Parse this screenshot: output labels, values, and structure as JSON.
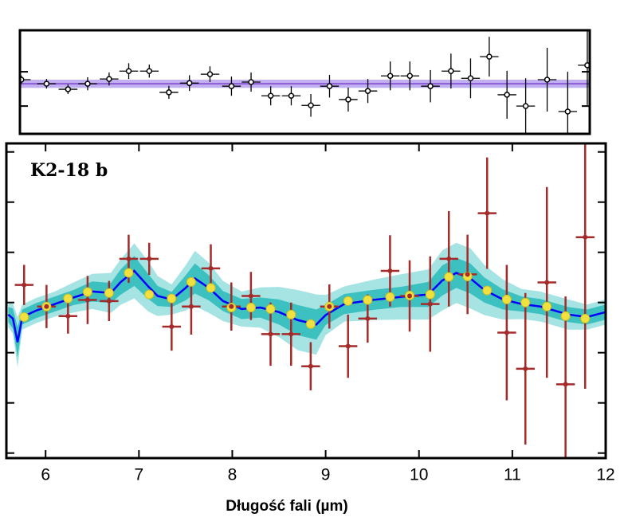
{
  "chart_data": [
    {
      "type": "residuals",
      "xlim": [
        5.725,
        11.826
      ],
      "ylim": [
        -0.81,
        2.21
      ],
      "yticks": [
        0,
        1
      ],
      "color": "#000000",
      "reference": 0.65,
      "reference_width": 0.12,
      "reference_color": "#8a5cd6",
      "reference_band_color": "#c2b0f0",
      "xerr": 0.1,
      "x": [
        5.74,
        6.01,
        6.24,
        6.45,
        6.68,
        6.89,
        7.11,
        7.32,
        7.54,
        7.76,
        7.99,
        8.2,
        8.41,
        8.63,
        8.84,
        9.04,
        9.24,
        9.45,
        9.69,
        9.9,
        10.12,
        10.34,
        10.55,
        10.75,
        10.94,
        11.14,
        11.37,
        11.59,
        11.8
      ],
      "values": [
        0.77,
        0.65,
        0.49,
        0.65,
        0.79,
        1.02,
        1.02,
        0.4,
        0.67,
        0.93,
        0.58,
        0.7,
        0.3,
        0.3,
        0.02,
        0.58,
        0.19,
        0.44,
        0.88,
        0.88,
        0.58,
        1.02,
        0.81,
        1.44,
        0.33,
        0,
        0.77,
        -0.16,
        1.19
      ],
      "errors": [
        0.12,
        0.14,
        0.14,
        0.19,
        0.19,
        0.23,
        0.19,
        0.19,
        0.23,
        0.23,
        0.28,
        0.28,
        0.28,
        0.28,
        0.33,
        0.33,
        0.35,
        0.35,
        0.42,
        0.42,
        0.47,
        0.51,
        0.58,
        0.58,
        0.7,
        0.81,
        0.93,
        1.16,
        1.16
      ]
    },
    {
      "type": "spectrum",
      "title": "K2-18 b",
      "x_label": "Długość fali (µm)",
      "xlim": [
        5.58,
        12
      ],
      "xticks": [
        6,
        7,
        8,
        9,
        10,
        11,
        12
      ],
      "ylim": [
        -0.1,
        6.17
      ],
      "yticks": [
        0,
        1,
        2,
        3,
        4,
        5,
        6
      ],
      "model": {
        "color": "#0000ff",
        "sigma1_color": "#3cc0c0",
        "sigma2_color": "#a6e3e3",
        "x": [
          5.6,
          5.65,
          5.7,
          5.75,
          5.9,
          6.1,
          6.3,
          6.5,
          6.7,
          6.8,
          6.95,
          7.1,
          7.2,
          7.35,
          7.5,
          7.6,
          7.75,
          7.9,
          8.1,
          8.3,
          8.5,
          8.7,
          8.9,
          9.0,
          9.2,
          9.5,
          9.8,
          10.1,
          10.25,
          10.4,
          10.55,
          10.7,
          10.9,
          11.1,
          11.3,
          11.6,
          11.8,
          12.0
        ],
        "values": [
          2.76,
          2.68,
          2.21,
          2.71,
          2.84,
          2.97,
          3.1,
          3.22,
          3.19,
          3.4,
          3.63,
          3.32,
          3.13,
          3.06,
          3.29,
          3.48,
          3.29,
          3.03,
          2.87,
          2.9,
          2.81,
          2.65,
          2.56,
          2.75,
          2.97,
          3.05,
          3.11,
          3.16,
          3.44,
          3.59,
          3.48,
          3.25,
          3.06,
          2.97,
          2.92,
          2.76,
          2.71,
          2.81
        ],
        "sigma1": [
          0.15,
          0.2,
          0.3,
          0.15,
          0.15,
          0.15,
          0.15,
          0.2,
          0.2,
          0.25,
          0.3,
          0.25,
          0.2,
          0.15,
          0.25,
          0.3,
          0.25,
          0.2,
          0.2,
          0.2,
          0.25,
          0.3,
          0.3,
          0.2,
          0.2,
          0.2,
          0.2,
          0.25,
          0.3,
          0.3,
          0.3,
          0.25,
          0.2,
          0.15,
          0.15,
          0.15,
          0.15,
          0.15
        ],
        "sigma2": [
          0.25,
          0.3,
          0.5,
          0.25,
          0.25,
          0.25,
          0.3,
          0.35,
          0.4,
          0.45,
          0.55,
          0.5,
          0.4,
          0.3,
          0.45,
          0.55,
          0.5,
          0.4,
          0.35,
          0.4,
          0.5,
          0.6,
          0.6,
          0.4,
          0.35,
          0.4,
          0.45,
          0.5,
          0.6,
          0.6,
          0.6,
          0.5,
          0.4,
          0.3,
          0.3,
          0.3,
          0.25,
          0.25
        ]
      },
      "data": {
        "color": "#a52a2a",
        "binned_color": "#f0e040",
        "xerr": 0.1,
        "x": [
          5.77,
          6.01,
          6.24,
          6.45,
          6.68,
          6.89,
          7.11,
          7.35,
          7.56,
          7.77,
          7.99,
          8.2,
          8.41,
          8.63,
          8.84,
          9.04,
          9.24,
          9.45,
          9.69,
          9.9,
          10.12,
          10.32,
          10.52,
          10.73,
          10.94,
          11.14,
          11.37,
          11.57,
          11.78
        ],
        "values": [
          3.35,
          2.92,
          2.73,
          3.05,
          3.03,
          3.87,
          3.87,
          2.52,
          2.92,
          3.68,
          2.92,
          3.13,
          2.37,
          2.37,
          1.73,
          2.92,
          2.13,
          2.68,
          3.63,
          3.13,
          2.97,
          3.87,
          3.56,
          4.78,
          2.4,
          1.68,
          3.4,
          1.37,
          4.3
        ],
        "errors": [
          0.4,
          0.43,
          0.35,
          0.48,
          0.4,
          0.48,
          0.32,
          0.48,
          0.56,
          0.48,
          0.48,
          0.48,
          0.63,
          0.63,
          0.48,
          0.44,
          0.63,
          0.48,
          0.71,
          0.71,
          0.95,
          0.95,
          0.79,
          1.11,
          1.35,
          1.51,
          1.9,
          1.75,
          3.02
        ],
        "binned_values": [
          2.71,
          2.92,
          3.08,
          3.21,
          3.19,
          3.59,
          3.16,
          3.08,
          3.41,
          3.29,
          2.9,
          2.9,
          2.87,
          2.76,
          2.57,
          2.92,
          3.03,
          3.05,
          3.11,
          3.14,
          3.16,
          3.51,
          3.52,
          3.24,
          3.06,
          3,
          2.92,
          2.73,
          2.68
        ]
      }
    }
  ]
}
